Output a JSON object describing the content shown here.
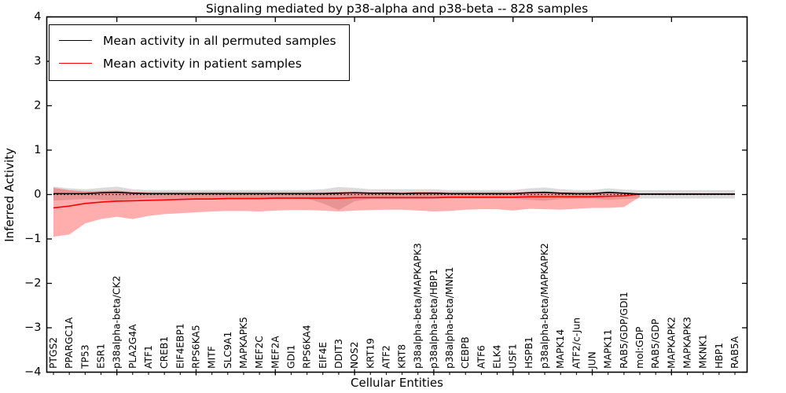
{
  "chart_data": {
    "type": "line",
    "title": "Signaling mediated by p38-alpha and p38-beta -- 828 samples",
    "xlabel": "Cellular Entities",
    "ylabel": "Inferred Activity",
    "ylim": [
      -4,
      4
    ],
    "yticks": [
      4,
      3,
      2,
      1,
      0,
      -1,
      -2,
      -3,
      -4
    ],
    "grid": false,
    "legend_position": "upper left",
    "zero_line": {
      "y": 0,
      "style": "dotted",
      "color": "#000000"
    },
    "categories": [
      "PTGS2",
      "PPARGC1A",
      "TP53",
      "ESR1",
      "p38alpha-beta/CK2",
      "PLA2G4A",
      "ATF1",
      "CREB1",
      "EIF4EBP1",
      "RPS6KA5",
      "MITF",
      "SLC9A1",
      "MAPKAPK5",
      "MEF2C",
      "MEF2A",
      "GDI1",
      "RPS6KA4",
      "EIF4E",
      "DDIT3",
      "NOS2",
      "KRT19",
      "ATF2",
      "KRT8",
      "p38alpha-beta/MAPKAPK3",
      "p38alpha-beta/HBP1",
      "p38alpha-beta/MNK1",
      "CEBPB",
      "ATF6",
      "ELK4",
      "USF1",
      "HSPB1",
      "p38alpha-beta/MAPKAPK2",
      "MAPK14",
      "ATF2/c-Jun",
      "JUN",
      "MAPK11",
      "RAB5/GDP/GDI1",
      "mol:GDP",
      "RAB5/GDP",
      "MAPKAPK2",
      "MAPKAPK3",
      "MKNK1",
      "HBP1",
      "RAB5A"
    ],
    "series": [
      {
        "name": "Mean activity in all permuted samples",
        "color": "#000000",
        "band_color": "#999999",
        "band_opacity": 0.35,
        "values": [
          0.02,
          0.02,
          0.02,
          0.04,
          0.05,
          0.03,
          0.02,
          0.02,
          0.02,
          0.02,
          0.02,
          0.02,
          0.02,
          0.02,
          0.02,
          0.02,
          0.02,
          0.02,
          0.03,
          0.04,
          0.03,
          0.03,
          0.02,
          0.03,
          0.03,
          0.02,
          0.02,
          0.02,
          0.02,
          0.02,
          0.04,
          0.05,
          0.03,
          0.02,
          0.02,
          0.05,
          0.03,
          0.01,
          0.01,
          0.01,
          0.01,
          0.01,
          0.01,
          0.01
        ],
        "band_upper": [
          0.18,
          0.14,
          0.12,
          0.15,
          0.18,
          0.12,
          0.1,
          0.1,
          0.1,
          0.1,
          0.1,
          0.1,
          0.1,
          0.1,
          0.1,
          0.1,
          0.1,
          0.12,
          0.17,
          0.15,
          0.12,
          0.12,
          0.12,
          0.12,
          0.12,
          0.1,
          0.1,
          0.1,
          0.1,
          0.1,
          0.14,
          0.16,
          0.12,
          0.1,
          0.1,
          0.14,
          0.11,
          0.1,
          0.1,
          0.1,
          0.1,
          0.1,
          0.1,
          0.1
        ],
        "band_lower": [
          -0.14,
          -0.12,
          -0.1,
          -0.12,
          -0.14,
          -0.1,
          -0.09,
          -0.09,
          -0.09,
          -0.09,
          -0.09,
          -0.09,
          -0.09,
          -0.09,
          -0.09,
          -0.09,
          -0.09,
          -0.2,
          -0.35,
          -0.15,
          -0.1,
          -0.1,
          -0.1,
          -0.1,
          -0.1,
          -0.09,
          -0.09,
          -0.09,
          -0.09,
          -0.09,
          -0.12,
          -0.14,
          -0.1,
          -0.09,
          -0.09,
          -0.12,
          -0.1,
          -0.09,
          -0.09,
          -0.09,
          -0.09,
          -0.09,
          -0.09,
          -0.09
        ]
      },
      {
        "name": "Mean activity in patient samples",
        "color": "#ff0000",
        "band_color": "#ff0000",
        "band_opacity": 0.32,
        "values": [
          -0.3,
          -0.26,
          -0.2,
          -0.17,
          -0.15,
          -0.14,
          -0.13,
          -0.12,
          -0.11,
          -0.1,
          -0.1,
          -0.09,
          -0.09,
          -0.09,
          -0.08,
          -0.08,
          -0.08,
          -0.08,
          -0.08,
          -0.07,
          -0.07,
          -0.07,
          -0.07,
          -0.07,
          -0.07,
          -0.06,
          -0.06,
          -0.06,
          -0.06,
          -0.06,
          -0.05,
          -0.05,
          -0.05,
          -0.05,
          -0.05,
          -0.04,
          -0.03,
          0.01,
          0.01,
          0.01,
          0.01,
          0.01,
          0.01,
          0.01
        ],
        "band_upper": [
          0.15,
          0.1,
          0.07,
          0.08,
          0.09,
          0.06,
          0.05,
          0.05,
          0.05,
          0.05,
          0.05,
          0.05,
          0.05,
          0.05,
          0.05,
          0.05,
          0.05,
          0.05,
          0.06,
          0.06,
          0.05,
          0.05,
          0.05,
          0.06,
          0.06,
          0.05,
          0.05,
          0.05,
          0.05,
          0.05,
          0.06,
          0.06,
          0.05,
          0.05,
          0.05,
          0.05,
          0.04,
          0.02,
          null,
          null,
          null,
          null,
          null,
          null
        ],
        "band_lower": [
          -0.95,
          -0.9,
          -0.65,
          -0.55,
          -0.5,
          -0.55,
          -0.48,
          -0.44,
          -0.42,
          -0.4,
          -0.38,
          -0.37,
          -0.37,
          -0.38,
          -0.36,
          -0.35,
          -0.35,
          -0.36,
          -0.38,
          -0.36,
          -0.35,
          -0.34,
          -0.34,
          -0.36,
          -0.38,
          -0.37,
          -0.34,
          -0.33,
          -0.33,
          -0.36,
          -0.32,
          -0.33,
          -0.34,
          -0.32,
          -0.3,
          -0.3,
          -0.28,
          -0.05,
          null,
          null,
          null,
          null,
          null,
          null
        ]
      }
    ]
  }
}
